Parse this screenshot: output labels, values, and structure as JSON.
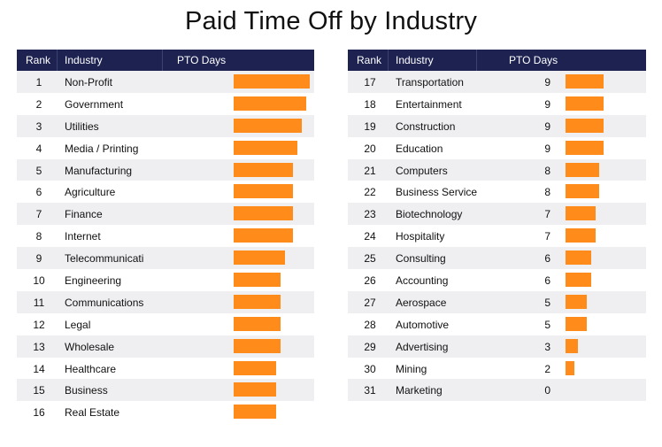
{
  "title": "Paid Time Off by Industry",
  "headers": {
    "rank": "Rank",
    "industry": "Industry",
    "days": "PTO Days"
  },
  "colors": {
    "header_bg": "#1d2250",
    "bar": "#ff8c1a",
    "stripe": "#efeff2"
  },
  "chart_data": {
    "type": "table",
    "title": "Paid Time Off by Industry",
    "columns": [
      "Rank",
      "Industry",
      "PTO Days"
    ],
    "max_days": 18,
    "tables": [
      {
        "rows": [
          {
            "rank": "1",
            "industry": "Non-Profit",
            "days": 18
          },
          {
            "rank": "2",
            "industry": "Government",
            "days": 17
          },
          {
            "rank": "3",
            "industry": "Utilities",
            "days": 16
          },
          {
            "rank": "4",
            "industry": "Media / Printing",
            "days": 15
          },
          {
            "rank": "5",
            "industry": "Manufacturing",
            "days": 14
          },
          {
            "rank": "6",
            "industry": "Agriculture",
            "days": 14
          },
          {
            "rank": "7",
            "industry": "Finance",
            "days": 14
          },
          {
            "rank": "8",
            "industry": "Internet",
            "days": 14
          },
          {
            "rank": "9",
            "industry": "Telecommunicati",
            "days": 12
          },
          {
            "rank": "10",
            "industry": "Engineering",
            "days": 11
          },
          {
            "rank": "11",
            "industry": "Communications",
            "days": 11
          },
          {
            "rank": "12",
            "industry": "Legal",
            "days": 11
          },
          {
            "rank": "13",
            "industry": "Wholesale",
            "days": 11
          },
          {
            "rank": "14",
            "industry": "Healthcare",
            "days": 10
          },
          {
            "rank": "15",
            "industry": "Business",
            "days": 10
          },
          {
            "rank": "16",
            "industry": "Real Estate",
            "days": 10
          }
        ]
      },
      {
        "rows": [
          {
            "rank": "17",
            "industry": "Transportation",
            "days": 9
          },
          {
            "rank": "18",
            "industry": "Entertainment",
            "days": 9
          },
          {
            "rank": "19",
            "industry": "Construction",
            "days": 9
          },
          {
            "rank": "20",
            "industry": "Education",
            "days": 9
          },
          {
            "rank": "21",
            "industry": "Computers",
            "days": 8
          },
          {
            "rank": "22",
            "industry": "Business Service",
            "days": 8
          },
          {
            "rank": "23",
            "industry": "Biotechnology",
            "days": 7
          },
          {
            "rank": "24",
            "industry": "Hospitality",
            "days": 7
          },
          {
            "rank": "25",
            "industry": "Consulting",
            "days": 6
          },
          {
            "rank": "26",
            "industry": "Accounting",
            "days": 6
          },
          {
            "rank": "27",
            "industry": "Aerospace",
            "days": 5
          },
          {
            "rank": "28",
            "industry": "Automotive",
            "days": 5
          },
          {
            "rank": "29",
            "industry": "Advertising",
            "days": 3
          },
          {
            "rank": "30",
            "industry": "Mining",
            "days": 2
          },
          {
            "rank": "31",
            "industry": "Marketing",
            "days": 0
          }
        ]
      }
    ]
  }
}
